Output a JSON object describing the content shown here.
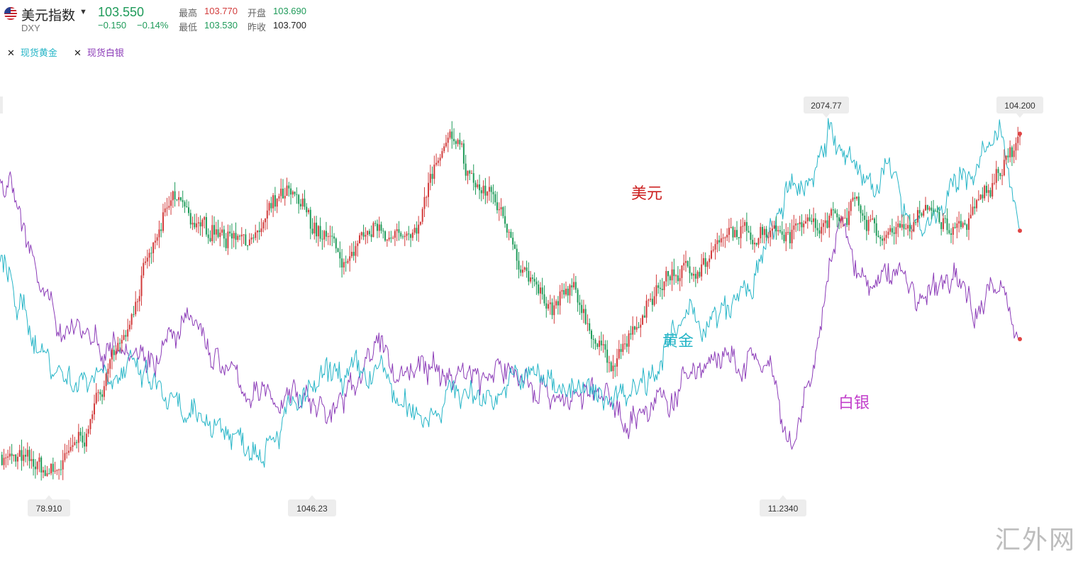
{
  "header": {
    "title": "美元指数",
    "symbol": "DXY",
    "price": "103.550",
    "change": "−0.150",
    "change_pct": "−0.14%",
    "stats": {
      "high_label": "最高",
      "high": "103.770",
      "open_label": "开盘",
      "open": "103.690",
      "low_label": "最低",
      "low": "103.530",
      "prev_label": "昨收",
      "prev": "103.700"
    }
  },
  "legend": [
    {
      "remove": "✕",
      "name": "现货黄金",
      "color": "#26b5c7"
    },
    {
      "remove": "✕",
      "name": "现货白银",
      "color": "#8c3cb8"
    }
  ],
  "annotations": {
    "dxy": "美元",
    "gold": "黄金",
    "silver": "白银"
  },
  "watermark": "汇外网",
  "chart_data": {
    "type": "line",
    "note_values": "series values are normalized 0 (bottom) to 1 (top) of each overlaid series' own scale",
    "axis_callouts": {
      "top_left_gold_high": "2074.77",
      "top_right_dxy_high": "104.200",
      "bottom_dxy_low": "78.910",
      "bottom_gold_low": "1046.23",
      "bottom_silver_low": "11.2340"
    },
    "series": [
      {
        "name": "美元",
        "style": "candlestick",
        "color_up": "#d23c3c",
        "color_down": "#1f9b5a",
        "values": [
          0.1,
          0.09,
          0.07,
          0.06,
          0.05,
          0.04,
          0.06,
          0.08,
          0.12,
          0.17,
          0.25,
          0.33,
          0.4,
          0.47,
          0.55,
          0.62,
          0.68,
          0.75,
          0.79,
          0.76,
          0.72,
          0.7,
          0.74,
          0.69,
          0.73,
          0.71,
          0.69,
          0.73,
          0.77,
          0.8,
          0.78,
          0.75,
          0.72,
          0.7,
          0.66,
          0.63,
          0.62,
          0.65,
          0.69,
          0.72,
          0.7,
          0.68,
          0.72,
          0.78,
          0.86,
          0.92,
          0.95,
          0.9,
          0.84,
          0.82,
          0.81,
          0.77,
          0.72,
          0.65,
          0.58,
          0.52,
          0.47,
          0.5,
          0.53,
          0.5,
          0.46,
          0.4,
          0.36,
          0.38,
          0.41,
          0.44,
          0.48,
          0.55,
          0.58,
          0.6,
          0.59,
          0.62,
          0.64,
          0.66,
          0.68,
          0.7,
          0.69,
          0.71,
          0.73,
          0.74,
          0.72,
          0.74,
          0.76,
          0.73,
          0.72,
          0.75,
          0.78,
          0.8,
          0.77,
          0.72,
          0.68,
          0.72,
          0.74,
          0.73,
          0.75,
          0.77,
          0.74,
          0.7,
          0.72,
          0.75,
          0.78,
          0.82,
          0.88,
          0.96,
          0.98
        ]
      },
      {
        "name": "黄金",
        "color": "#26b5c7",
        "values": [
          0.62,
          0.56,
          0.5,
          0.45,
          0.4,
          0.36,
          0.33,
          0.31,
          0.3,
          0.31,
          0.33,
          0.34,
          0.33,
          0.32,
          0.31,
          0.3,
          0.28,
          0.26,
          0.22,
          0.19,
          0.17,
          0.18,
          0.2,
          0.18,
          0.16,
          0.14,
          0.13,
          0.14,
          0.16,
          0.18,
          0.2,
          0.22,
          0.24,
          0.26,
          0.28,
          0.3,
          0.31,
          0.3,
          0.29,
          0.31,
          0.32,
          0.28,
          0.22,
          0.2,
          0.21,
          0.22,
          0.24,
          0.26,
          0.27,
          0.26,
          0.25,
          0.26,
          0.27,
          0.28,
          0.29,
          0.3,
          0.31,
          0.3,
          0.29,
          0.3,
          0.28,
          0.26,
          0.25,
          0.24,
          0.26,
          0.27,
          0.28,
          0.3,
          0.32,
          0.36,
          0.39,
          0.42,
          0.45,
          0.47,
          0.46,
          0.45,
          0.47,
          0.5,
          0.53,
          0.56,
          0.62,
          0.7,
          0.76,
          0.8,
          0.82,
          0.84,
          0.93,
          0.99,
          0.92,
          0.88,
          0.86,
          0.84,
          0.87,
          0.86,
          0.82,
          0.78,
          0.74,
          0.72,
          0.75,
          0.77,
          0.8,
          0.84,
          0.88,
          0.9,
          0.92,
          0.95,
          0.86,
          0.72
        ]
      },
      {
        "name": "白银",
        "color": "#8c3cb8",
        "values": [
          0.9,
          0.86,
          0.8,
          0.7,
          0.58,
          0.5,
          0.46,
          0.47,
          0.48,
          0.45,
          0.42,
          0.41,
          0.43,
          0.44,
          0.42,
          0.39,
          0.38,
          0.4,
          0.42,
          0.44,
          0.46,
          0.44,
          0.4,
          0.36,
          0.32,
          0.3,
          0.28,
          0.26,
          0.25,
          0.26,
          0.27,
          0.28,
          0.26,
          0.24,
          0.22,
          0.22,
          0.24,
          0.28,
          0.36,
          0.4,
          0.38,
          0.35,
          0.33,
          0.34,
          0.36,
          0.34,
          0.31,
          0.32,
          0.33,
          0.34,
          0.33,
          0.31,
          0.32,
          0.34,
          0.33,
          0.32,
          0.3,
          0.29,
          0.28,
          0.26,
          0.25,
          0.26,
          0.27,
          0.26,
          0.24,
          0.22,
          0.21,
          0.22,
          0.23,
          0.24,
          0.25,
          0.27,
          0.3,
          0.33,
          0.36,
          0.38,
          0.36,
          0.34,
          0.35,
          0.36,
          0.35,
          0.33,
          0.15,
          0.1,
          0.19,
          0.3,
          0.44,
          0.62,
          0.74,
          0.68,
          0.62,
          0.58,
          0.56,
          0.6,
          0.63,
          0.6,
          0.55,
          0.53,
          0.55,
          0.58,
          0.6,
          0.56,
          0.52,
          0.55,
          0.58,
          0.56,
          0.5,
          0.44
        ]
      }
    ],
    "grid": false,
    "legend_position": "top-left"
  }
}
